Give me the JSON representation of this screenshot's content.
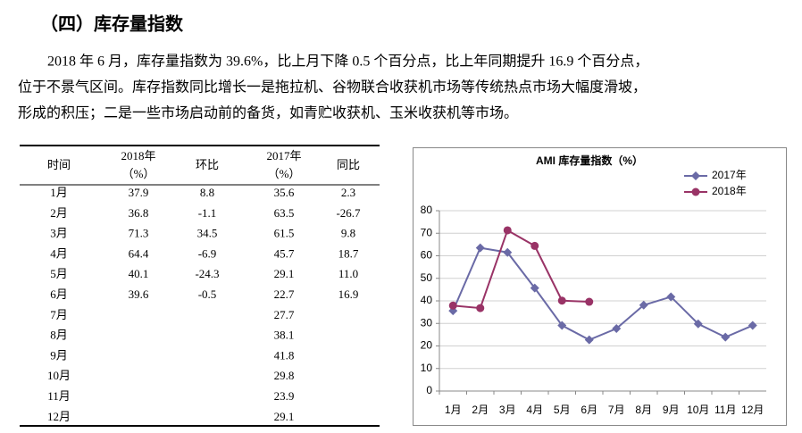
{
  "heading": "（四）库存量指数",
  "paragraph": [
    "2018 年 6 月，库存量指数为 39.6%，比上月下降 0.5 个百分点，比上年同期提升 16.9 个百分点，",
    "位于不景气区间。库存指数同比增长一是拖拉机、谷物联合收获机市场等传统热点市场大幅度滑坡，",
    "形成的积压；二是一些市场启动前的备货，如青贮收获机、玉米收获机等市场。"
  ],
  "table": {
    "columns": [
      {
        "header": [
          "时间"
        ],
        "cells": [
          "1月",
          "2月",
          "3月",
          "4月",
          "5月",
          "6月",
          "7月",
          "8月",
          "9月",
          "10月",
          "11月",
          "12月"
        ]
      },
      {
        "header": [
          "2018年",
          "（%）"
        ],
        "cells": [
          "37.9",
          "36.8",
          "71.3",
          "64.4",
          "40.1",
          "39.6"
        ]
      },
      {
        "header": [
          "环比"
        ],
        "cells": [
          "8.8",
          "-1.1",
          "34.5",
          "-6.9",
          "-24.3",
          "-0.5"
        ]
      },
      {
        "header": [
          "2017年",
          "（%）"
        ],
        "cells": [
          "35.6",
          "63.5",
          "61.5",
          "45.7",
          "29.1",
          "22.7",
          "27.7",
          "38.1",
          "41.8",
          "29.8",
          "23.9",
          "29.1"
        ]
      },
      {
        "header": [
          "同比"
        ],
        "cells": [
          "2.3",
          "-26.7",
          "9.8",
          "18.7",
          "11.0",
          "16.9"
        ]
      }
    ]
  },
  "chart_data": {
    "type": "line",
    "title": "AMI 库存量指数（%）",
    "categories": [
      "1月",
      "2月",
      "3月",
      "4月",
      "5月",
      "6月",
      "7月",
      "8月",
      "9月",
      "10月",
      "11月",
      "12月"
    ],
    "series": [
      {
        "name": "2017年",
        "color": "#6a6aa6",
        "marker": "diamond",
        "values": [
          35.6,
          63.5,
          61.5,
          45.7,
          29.1,
          22.7,
          27.7,
          38.1,
          41.8,
          29.8,
          23.9,
          29.1
        ]
      },
      {
        "name": "2018年",
        "color": "#993366",
        "marker": "circle",
        "values": [
          37.9,
          36.8,
          71.3,
          64.4,
          40.1,
          39.6,
          null,
          null,
          null,
          null,
          null,
          null
        ]
      }
    ],
    "ylim": [
      0,
      80
    ],
    "yticks": [
      0,
      10,
      20,
      30,
      40,
      50,
      60,
      70,
      80
    ],
    "grid": true,
    "legend": "top-right"
  }
}
